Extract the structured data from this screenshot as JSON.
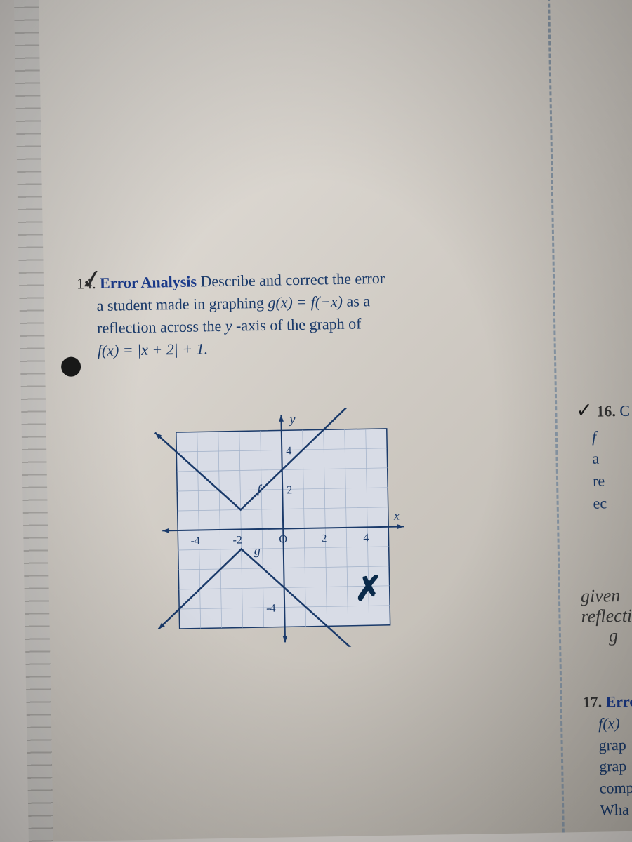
{
  "problem14": {
    "number": "14.",
    "title": "Error Analysis",
    "text1": "Describe and correct the error",
    "text2": "a student made in graphing ",
    "eq_g": "g(x) = f(−x)",
    "text3": " as a",
    "text4": "reflection across the ",
    "yaxis": "y",
    "text5": "-axis of the graph of",
    "eq_f": "f(x) = |x + 2| + 1."
  },
  "graph": {
    "type": "line",
    "background_color": "#d8dce6",
    "grid_color": "#a0b0c8",
    "axis_color": "#1a3a6a",
    "xlim": [
      -5,
      5
    ],
    "ylim": [
      -5,
      5
    ],
    "xtick_labels": [
      "-4",
      "-2",
      "O",
      "2",
      "4"
    ],
    "ytick_labels": [
      "-4",
      "2",
      "4"
    ],
    "ytick_positions": [
      -4,
      2,
      4
    ],
    "xlabel": "x",
    "ylabel": "y",
    "label_fontsize": 18,
    "f_line": {
      "label": "f",
      "color": "#1a3a6a",
      "width": 2.5,
      "points": [
        [
          -6,
          5
        ],
        [
          -2,
          1
        ],
        [
          4,
          7
        ]
      ]
    },
    "g_line": {
      "label": "g",
      "color": "#1a3a6a",
      "width": 2.5,
      "points": [
        [
          -6,
          -5
        ],
        [
          -2,
          -1
        ],
        [
          4,
          -7
        ]
      ]
    }
  },
  "cross": "✗",
  "right16": {
    "check": "✓",
    "num": "16.",
    "c": "C",
    "lines": [
      "f",
      "a",
      "re",
      "ec"
    ]
  },
  "handwritten": {
    "l1": "given",
    "l2": "reflection",
    "l3": "g"
  },
  "right17": {
    "num": "17.",
    "title": "Errc",
    "eq": "f(x)",
    "l1": "grap",
    "l2": "grap",
    "l3": "comp",
    "l4": "Wha"
  }
}
